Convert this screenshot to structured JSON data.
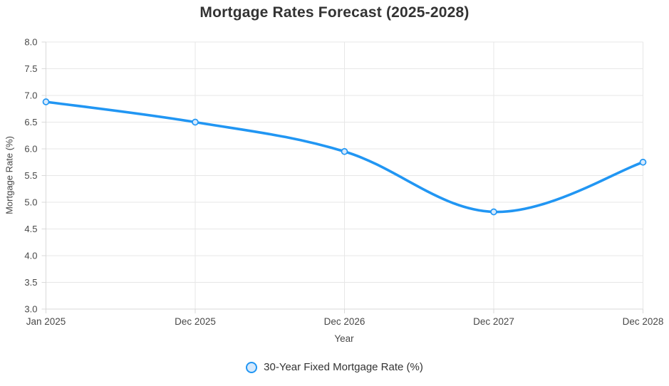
{
  "chart_data": {
    "type": "line",
    "title": "Mortgage Rates Forecast (2025-2028)",
    "xlabel": "Year",
    "ylabel": "Mortgage Rate (%)",
    "categories": [
      "Jan 2025",
      "Dec 2025",
      "Dec 2026",
      "Dec 2027",
      "Dec 2028"
    ],
    "series": [
      {
        "name": "30-Year Fixed Mortgage Rate (%)",
        "values": [
          6.88,
          6.5,
          5.95,
          4.82,
          5.75
        ]
      }
    ],
    "ylim": [
      3.0,
      8.0
    ],
    "y_ticks": [
      3.0,
      3.5,
      4.0,
      4.5,
      5.0,
      5.5,
      6.0,
      6.5,
      7.0,
      7.5,
      8.0
    ],
    "grid": true,
    "smooth": true,
    "legend_position": "bottom",
    "colors": {
      "line": "#2196F3",
      "point_fill": "#D6E9FC",
      "grid": "#E7E7E7",
      "axis": "#D9D9D9",
      "tick_text": "#484848",
      "title_text": "#333333"
    }
  }
}
